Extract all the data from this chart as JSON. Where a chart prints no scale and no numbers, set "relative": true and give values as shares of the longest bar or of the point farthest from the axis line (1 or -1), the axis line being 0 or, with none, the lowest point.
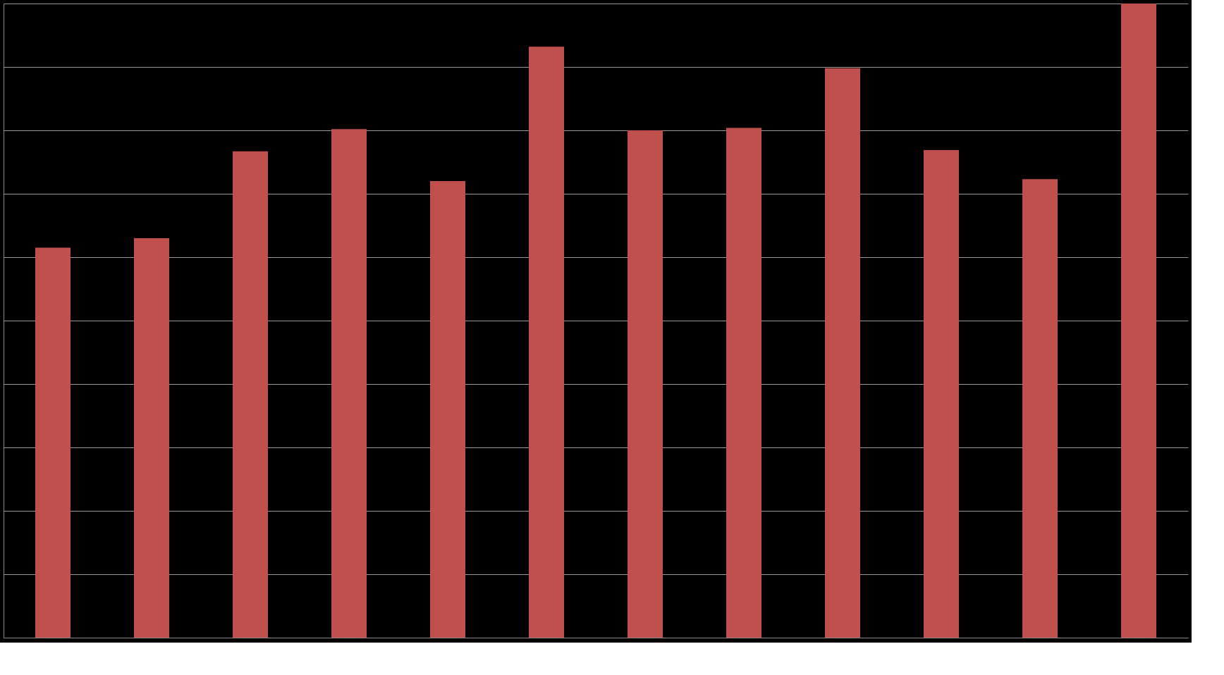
{
  "chart_data": {
    "type": "bar",
    "relative": true,
    "grid": true,
    "categories": [
      null,
      null,
      null,
      null,
      null,
      null,
      null,
      null,
      null,
      null,
      null,
      null
    ],
    "values": [
      0.615,
      0.63,
      0.767,
      0.802,
      0.72,
      0.932,
      0.8,
      0.804,
      0.898,
      0.769,
      0.723,
      1.0
    ],
    "color": "#c0504d"
  }
}
